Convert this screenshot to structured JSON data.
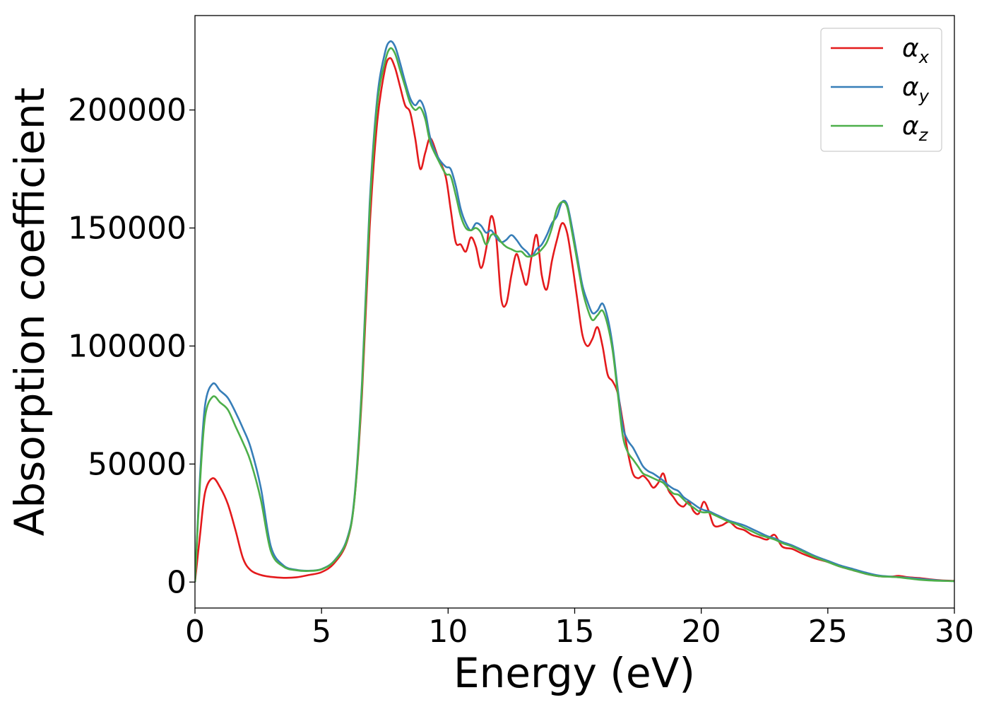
{
  "chart_data": {
    "type": "line",
    "title": "",
    "xlabel": "Energy (eV)",
    "ylabel": "Absorption coefficient",
    "xlim": [
      0,
      30
    ],
    "ylim": [
      -11000,
      240000
    ],
    "xticks": [
      0,
      5,
      10,
      15,
      20,
      25,
      30
    ],
    "yticks": [
      0,
      50000,
      100000,
      150000,
      200000
    ],
    "grid": false,
    "legend_position": "top-right",
    "series": [
      {
        "name": "α",
        "subscript": "x",
        "color": "#e41a1c",
        "x": [
          0,
          0.2,
          0.4,
          0.7,
          1.0,
          1.3,
          1.6,
          1.9,
          2.2,
          2.6,
          3.0,
          3.5,
          4.0,
          4.5,
          5.0,
          5.5,
          6.0,
          6.3,
          6.6,
          6.9,
          7.2,
          7.5,
          7.7,
          7.9,
          8.1,
          8.3,
          8.5,
          8.7,
          8.9,
          9.1,
          9.3,
          9.6,
          9.9,
          10.1,
          10.3,
          10.5,
          10.7,
          10.9,
          11.1,
          11.3,
          11.5,
          11.7,
          11.9,
          12.1,
          12.3,
          12.5,
          12.7,
          12.9,
          13.1,
          13.3,
          13.5,
          13.7,
          13.9,
          14.1,
          14.3,
          14.5,
          14.7,
          14.9,
          15.1,
          15.3,
          15.5,
          15.7,
          15.9,
          16.1,
          16.3,
          16.5,
          16.7,
          16.9,
          17.1,
          17.3,
          17.5,
          17.7,
          17.9,
          18.1,
          18.3,
          18.5,
          18.7,
          18.9,
          19.1,
          19.3,
          19.5,
          19.7,
          19.9,
          20.1,
          20.3,
          20.5,
          20.8,
          21.1,
          21.4,
          21.7,
          22.0,
          22.3,
          22.6,
          22.9,
          23.2,
          23.6,
          24.0,
          24.5,
          25.0,
          25.5,
          26.0,
          26.5,
          27.0,
          27.5,
          27.8,
          28.2,
          28.6,
          29.0,
          29.5,
          30.0
        ],
        "y": [
          0,
          20000,
          38000,
          44000,
          40000,
          33000,
          22000,
          10000,
          5000,
          3000,
          2200,
          1800,
          2000,
          3000,
          4200,
          8000,
          17000,
          35000,
          80000,
          150000,
          195000,
          217000,
          222000,
          218000,
          210000,
          202000,
          199000,
          188000,
          175000,
          182000,
          188000,
          180000,
          172000,
          158000,
          144000,
          143000,
          140000,
          146000,
          142000,
          133000,
          141000,
          155000,
          146000,
          120000,
          118000,
          130000,
          139000,
          132000,
          126000,
          138000,
          147000,
          130000,
          124000,
          136000,
          145000,
          152000,
          148000,
          135000,
          120000,
          105000,
          100000,
          103000,
          108000,
          100000,
          88000,
          85000,
          80000,
          68000,
          55000,
          46000,
          44000,
          45000,
          43000,
          40000,
          42000,
          46000,
          39000,
          36000,
          33000,
          32000,
          34000,
          30000,
          29000,
          34000,
          30000,
          24000,
          24000,
          25500,
          23000,
          22000,
          20000,
          19000,
          18000,
          20000,
          15000,
          14000,
          12000,
          10000,
          8500,
          6500,
          5000,
          3500,
          2500,
          2300,
          2600,
          2000,
          1700,
          1200,
          700,
          500
        ]
      },
      {
        "name": "α",
        "subscript": "y",
        "color": "#377eb8",
        "x": [
          0,
          0.2,
          0.4,
          0.7,
          1.0,
          1.3,
          1.6,
          1.9,
          2.2,
          2.6,
          3.0,
          3.5,
          4.0,
          4.5,
          5.0,
          5.5,
          6.0,
          6.3,
          6.6,
          6.9,
          7.2,
          7.5,
          7.7,
          7.9,
          8.1,
          8.3,
          8.5,
          8.7,
          8.9,
          9.1,
          9.3,
          9.6,
          9.9,
          10.1,
          10.3,
          10.5,
          10.7,
          10.9,
          11.1,
          11.3,
          11.5,
          11.7,
          11.9,
          12.1,
          12.3,
          12.5,
          12.7,
          12.9,
          13.1,
          13.3,
          13.5,
          13.7,
          13.9,
          14.1,
          14.3,
          14.5,
          14.7,
          14.9,
          15.1,
          15.3,
          15.5,
          15.7,
          15.9,
          16.1,
          16.3,
          16.5,
          16.7,
          16.9,
          17.1,
          17.3,
          17.5,
          17.7,
          17.9,
          18.1,
          18.3,
          18.5,
          18.7,
          18.9,
          19.1,
          19.3,
          19.5,
          19.7,
          19.9,
          20.1,
          20.3,
          20.5,
          20.8,
          21.1,
          21.4,
          21.7,
          22.0,
          22.3,
          22.6,
          22.9,
          23.2,
          23.6,
          24.0,
          24.5,
          25.0,
          25.5,
          26.0,
          26.5,
          27.0,
          27.5,
          27.8,
          28.2,
          28.6,
          29.0,
          29.5,
          30.0
        ],
        "y": [
          0,
          45000,
          75000,
          84000,
          81000,
          78000,
          72000,
          65000,
          57000,
          40000,
          15000,
          7000,
          5200,
          4800,
          5500,
          9000,
          18000,
          36000,
          85000,
          160000,
          205000,
          224000,
          229000,
          227000,
          220000,
          212000,
          205000,
          202000,
          204000,
          199000,
          188000,
          180000,
          176000,
          175000,
          168000,
          158000,
          152000,
          149000,
          152000,
          151000,
          148000,
          149000,
          146000,
          144000,
          145000,
          147000,
          145000,
          142000,
          140000,
          138000,
          141000,
          143000,
          147000,
          152000,
          155000,
          161000,
          160000,
          150000,
          138000,
          126000,
          119000,
          114000,
          115000,
          118000,
          112000,
          100000,
          82000,
          66000,
          60000,
          57000,
          53000,
          49000,
          47000,
          46000,
          44500,
          43000,
          41000,
          39500,
          38500,
          36000,
          34500,
          33000,
          31500,
          30500,
          30000,
          29000,
          27500,
          26000,
          25000,
          24000,
          22500,
          21000,
          19500,
          18500,
          17000,
          15500,
          13500,
          11000,
          9000,
          7000,
          5500,
          4000,
          2800,
          2300,
          2100,
          1800,
          1400,
          1000,
          600,
          400
        ]
      },
      {
        "name": "α",
        "subscript": "z",
        "color": "#4daf4a",
        "x": [
          0,
          0.2,
          0.4,
          0.7,
          1.0,
          1.3,
          1.6,
          1.9,
          2.2,
          2.6,
          3.0,
          3.5,
          4.0,
          4.5,
          5.0,
          5.5,
          6.0,
          6.3,
          6.6,
          6.9,
          7.2,
          7.5,
          7.7,
          7.9,
          8.1,
          8.3,
          8.5,
          8.7,
          8.9,
          9.1,
          9.3,
          9.6,
          9.9,
          10.1,
          10.3,
          10.5,
          10.7,
          10.9,
          11.1,
          11.3,
          11.5,
          11.7,
          11.9,
          12.1,
          12.3,
          12.5,
          12.7,
          12.9,
          13.1,
          13.3,
          13.5,
          13.7,
          13.9,
          14.1,
          14.3,
          14.5,
          14.7,
          14.9,
          15.1,
          15.3,
          15.5,
          15.7,
          15.9,
          16.1,
          16.3,
          16.5,
          16.7,
          16.9,
          17.1,
          17.3,
          17.5,
          17.7,
          17.9,
          18.1,
          18.3,
          18.5,
          18.7,
          18.9,
          19.1,
          19.3,
          19.5,
          19.7,
          19.9,
          20.1,
          20.3,
          20.5,
          20.8,
          21.1,
          21.4,
          21.7,
          22.0,
          22.3,
          22.6,
          22.9,
          23.2,
          23.6,
          24.0,
          24.5,
          25.0,
          25.5,
          26.0,
          26.5,
          27.0,
          27.5,
          27.8,
          28.2,
          28.6,
          29.0,
          29.5,
          30.0
        ],
        "y": [
          0,
          42000,
          70000,
          78500,
          76000,
          73000,
          66000,
          59000,
          51000,
          35000,
          13000,
          6500,
          5000,
          4700,
          5400,
          8800,
          17500,
          35000,
          83000,
          157000,
          202000,
          220000,
          226000,
          224000,
          217000,
          210000,
          203000,
          200000,
          201000,
          196000,
          186000,
          179000,
          173000,
          172000,
          164000,
          155000,
          150000,
          149000,
          150000,
          148000,
          143000,
          147000,
          147000,
          144000,
          142000,
          141000,
          140000,
          140000,
          138000,
          138000,
          139000,
          141000,
          144000,
          150000,
          158000,
          161000,
          159000,
          148000,
          136000,
          124000,
          116000,
          111000,
          113000,
          115000,
          109000,
          98000,
          80000,
          62000,
          55000,
          52000,
          49000,
          46000,
          45000,
          44000,
          43000,
          42000,
          39500,
          37500,
          37000,
          35000,
          33000,
          31500,
          30000,
          29500,
          29500,
          28500,
          27000,
          25500,
          24500,
          23000,
          21500,
          20000,
          19000,
          18000,
          16500,
          15000,
          13000,
          10500,
          8500,
          6500,
          5000,
          3500,
          2500,
          2200,
          2000,
          1500,
          1000,
          700,
          500,
          400
        ]
      }
    ]
  }
}
